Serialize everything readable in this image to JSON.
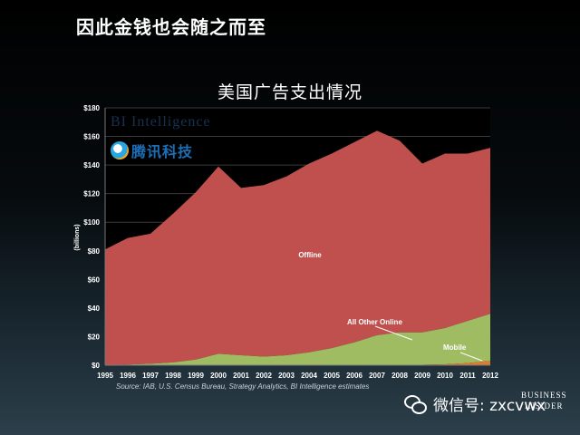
{
  "slide": {
    "title": "因此金钱也会随之而至",
    "source": "Source: IAB, U.S. Census Bureau, Strategy Analytics, BI Intelligence estimates",
    "brand_bi": "BI Intelligence",
    "brand_tencent": "腾讯科技",
    "wechat_label": "微信号: zxcvwx",
    "corner_line1": "BUSINESS",
    "corner_line2": "INSIDER"
  },
  "chart_data": {
    "type": "area",
    "stacked": true,
    "title": "美国广告支出情况",
    "ylabel": "(billions)",
    "xlabel": "",
    "x": [
      "1995",
      "1996",
      "1997",
      "1998",
      "1999",
      "2000",
      "2001",
      "2002",
      "2003",
      "2004",
      "2005",
      "2006",
      "2007",
      "2008",
      "2009",
      "2010",
      "2011",
      "2012"
    ],
    "ylim": [
      0,
      180
    ],
    "yticks": [
      0,
      20,
      40,
      60,
      80,
      100,
      120,
      140,
      160,
      180
    ],
    "ytick_labels": [
      "$0",
      "$20",
      "$40",
      "$60",
      "$80",
      "$100",
      "$120",
      "$140",
      "$160",
      "$180"
    ],
    "series": [
      {
        "name": "Mobile",
        "color": "#e07a2e",
        "values": [
          0,
          0,
          0,
          0,
          0,
          0,
          0,
          0,
          0,
          0,
          0,
          0,
          0,
          0,
          0.3,
          0.6,
          1.5,
          3
        ]
      },
      {
        "name": "All Other Online",
        "color": "#9fbc62",
        "values": [
          0,
          0.5,
          1,
          2,
          4,
          8,
          7,
          6,
          7,
          9,
          12,
          16,
          21,
          23,
          22.7,
          25.4,
          29.5,
          33
        ]
      },
      {
        "name": "Offline",
        "color": "#c0504d",
        "values": [
          81,
          88.5,
          91,
          104,
          117,
          131,
          117,
          120,
          125,
          132,
          136,
          140,
          143,
          134,
          118,
          122,
          117,
          116
        ]
      }
    ],
    "background": "#000000",
    "grid": true,
    "legend": "inline labels"
  }
}
